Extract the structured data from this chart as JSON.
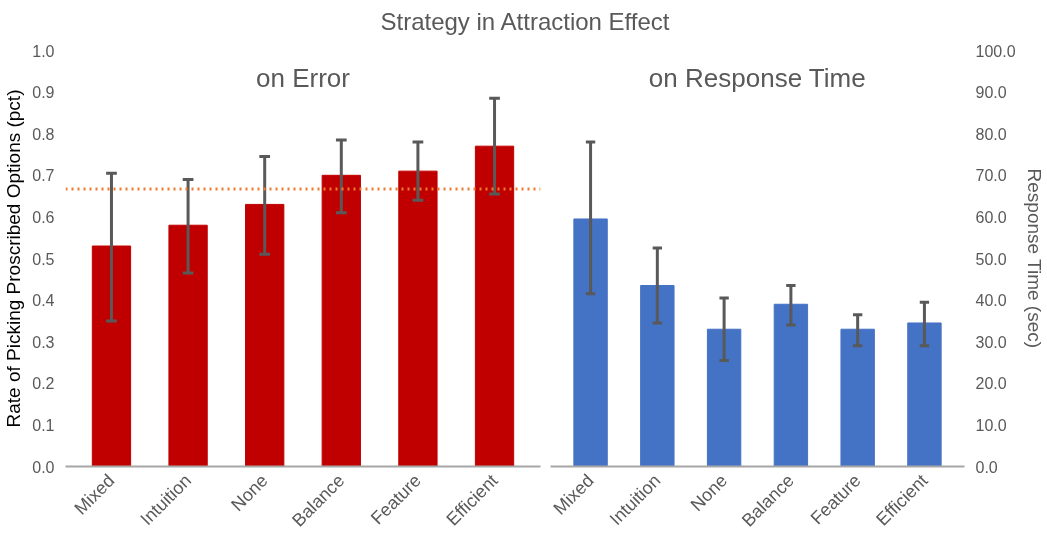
{
  "chart_data": [
    {
      "type": "bar",
      "title": "Strategy in Attraction Effect",
      "subtitle": "on Error",
      "ylabel": "Rate of Picking Proscribed Options (pct)",
      "categories": [
        "Mixed",
        "Intuition",
        "None",
        "Balance",
        "Feature",
        "Efficient"
      ],
      "series": [
        {
          "color": "#c00000",
          "values": [
            0.53,
            0.58,
            0.63,
            0.7,
            0.71,
            0.77
          ],
          "errors": [
            [
              0.35,
              0.705
            ],
            [
              0.465,
              0.69
            ],
            [
              0.51,
              0.745
            ],
            [
              0.61,
              0.785
            ],
            [
              0.64,
              0.78
            ],
            [
              0.655,
              0.885
            ]
          ]
        }
      ],
      "ylim": [
        0,
        1
      ],
      "yticks": [
        {
          "value": 0,
          "label": "0.0"
        },
        {
          "value": 0.1,
          "label": "0.1"
        },
        {
          "value": 0.2,
          "label": "0.2"
        },
        {
          "value": 0.3,
          "label": "0.3"
        },
        {
          "value": 0.4,
          "label": "0.4"
        },
        {
          "value": 0.5,
          "label": "0.5"
        },
        {
          "value": 0.6,
          "label": "0.6"
        },
        {
          "value": 0.7,
          "label": "0.7"
        },
        {
          "value": 0.8,
          "label": "0.8"
        },
        {
          "value": 0.9,
          "label": "0.9"
        },
        {
          "value": 1,
          "label": "1.0"
        }
      ],
      "ref_lines": [
        {
          "axis": "y",
          "value": 0.667,
          "color": "#ed7d31",
          "line_style": "dotted"
        }
      ],
      "grid": false
    },
    {
      "type": "bar",
      "subtitle": "on Response Time",
      "y2label": "Response Time (sec)",
      "categories": [
        "Mixed",
        "Intuition",
        "None",
        "Balance",
        "Feature",
        "Efficient"
      ],
      "series": [
        {
          "color": "#4472c4",
          "axis": "y2",
          "values": [
            59.5,
            43.5,
            33,
            39,
            33,
            34.5
          ],
          "errors": [
            [
              41.5,
              78
            ],
            [
              34.5,
              52.5
            ],
            [
              25.5,
              40.5
            ],
            [
              34,
              43.5
            ],
            [
              29,
              36.5
            ],
            [
              29,
              39.5
            ]
          ]
        }
      ],
      "y2lim": [
        0,
        100
      ],
      "y2ticks": [
        {
          "value": 0,
          "label": "0.0"
        },
        {
          "value": 10,
          "label": "10.0"
        },
        {
          "value": 20,
          "label": "20.0"
        },
        {
          "value": 30,
          "label": "30.0"
        },
        {
          "value": 40,
          "label": "40.0"
        },
        {
          "value": 50,
          "label": "50.0"
        },
        {
          "value": 60,
          "label": "60.0"
        },
        {
          "value": 70,
          "label": "70.0"
        },
        {
          "value": 80,
          "label": "80.0"
        },
        {
          "value": 90,
          "label": "90.0"
        },
        {
          "value": 100,
          "label": "100.0"
        }
      ],
      "grid": false
    }
  ]
}
